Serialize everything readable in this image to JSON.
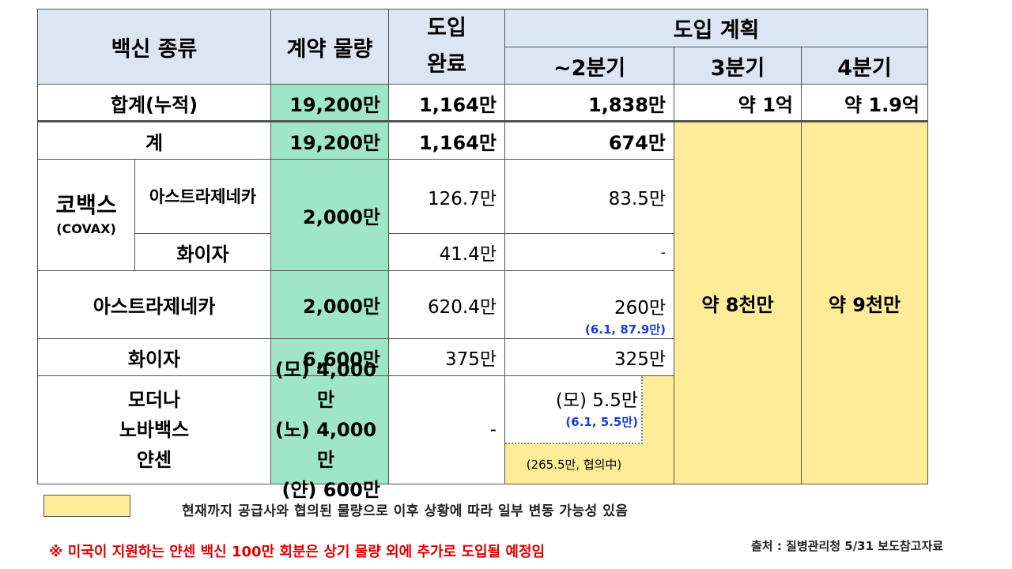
{
  "header": {
    "vaccine_type": "백신 종류",
    "contract_qty": "계약 물량",
    "intro_done_1": "도입",
    "intro_done_2": "완료",
    "plan": "도입 계획",
    "q2": "~2분기",
    "q3": "3분기",
    "q4": "4분기"
  },
  "total_row": {
    "label": "합계(누적)",
    "contract": "19,200만",
    "done": "1,164만",
    "q2": "1,838만",
    "q3": "약 1억",
    "q4": "약 1.9억"
  },
  "sum_row": {
    "label": "계",
    "contract": "19,200만",
    "done": "1,164만",
    "q2": "674만"
  },
  "covax": {
    "label": "코백스",
    "sublabel": "(COVAX)",
    "contract": "2,000만",
    "az_label": "아스트라제네카",
    "az_done": "126.7만",
    "az_q2": "83.5만",
    "pf_label": "화이자",
    "pf_done": "41.4만",
    "pf_q2": "-"
  },
  "az_row": {
    "label": "아스트라제네카",
    "contract": "2,000만",
    "done": "620.4만",
    "q2": "260만",
    "q2_note": "(6.1, 87.9만)"
  },
  "pfizer_row": {
    "label": "화이자",
    "contract": "6,600만",
    "done": "375만",
    "q2": "325만"
  },
  "etc_row": {
    "label_1": "모더나",
    "label_2": "노바백스",
    "label_3": "얀센",
    "contract_1": "(모) 4,000만",
    "contract_2": "(노) 4,000만",
    "contract_3": "(얀) 600만",
    "done": "-",
    "q2": "(모) 5.5만",
    "q2_note": "(6.1, 5.5만)",
    "q2_pending": "(265.5만, 협의中)"
  },
  "q3_merged": "약 8천만",
  "q4_merged": "약 9천만",
  "legend_text": "현재까지 공급사와 협의된 물량으로 이후 상황에 따라 일부 변동 가능성 있음",
  "footnote": "※ 미국이 지원하는 얀센 백신 100만 회분은 상기 물량 외에 추가로 도입될 예정임",
  "source": "출처 : 질병관리청 5/31 보도참고자료",
  "colors": {
    "header": "#dce6f2",
    "contract": "#9fe6c9",
    "planned": "#ffec99",
    "note_blue": "#1a3ccf",
    "footnote_red": "#e00000"
  }
}
